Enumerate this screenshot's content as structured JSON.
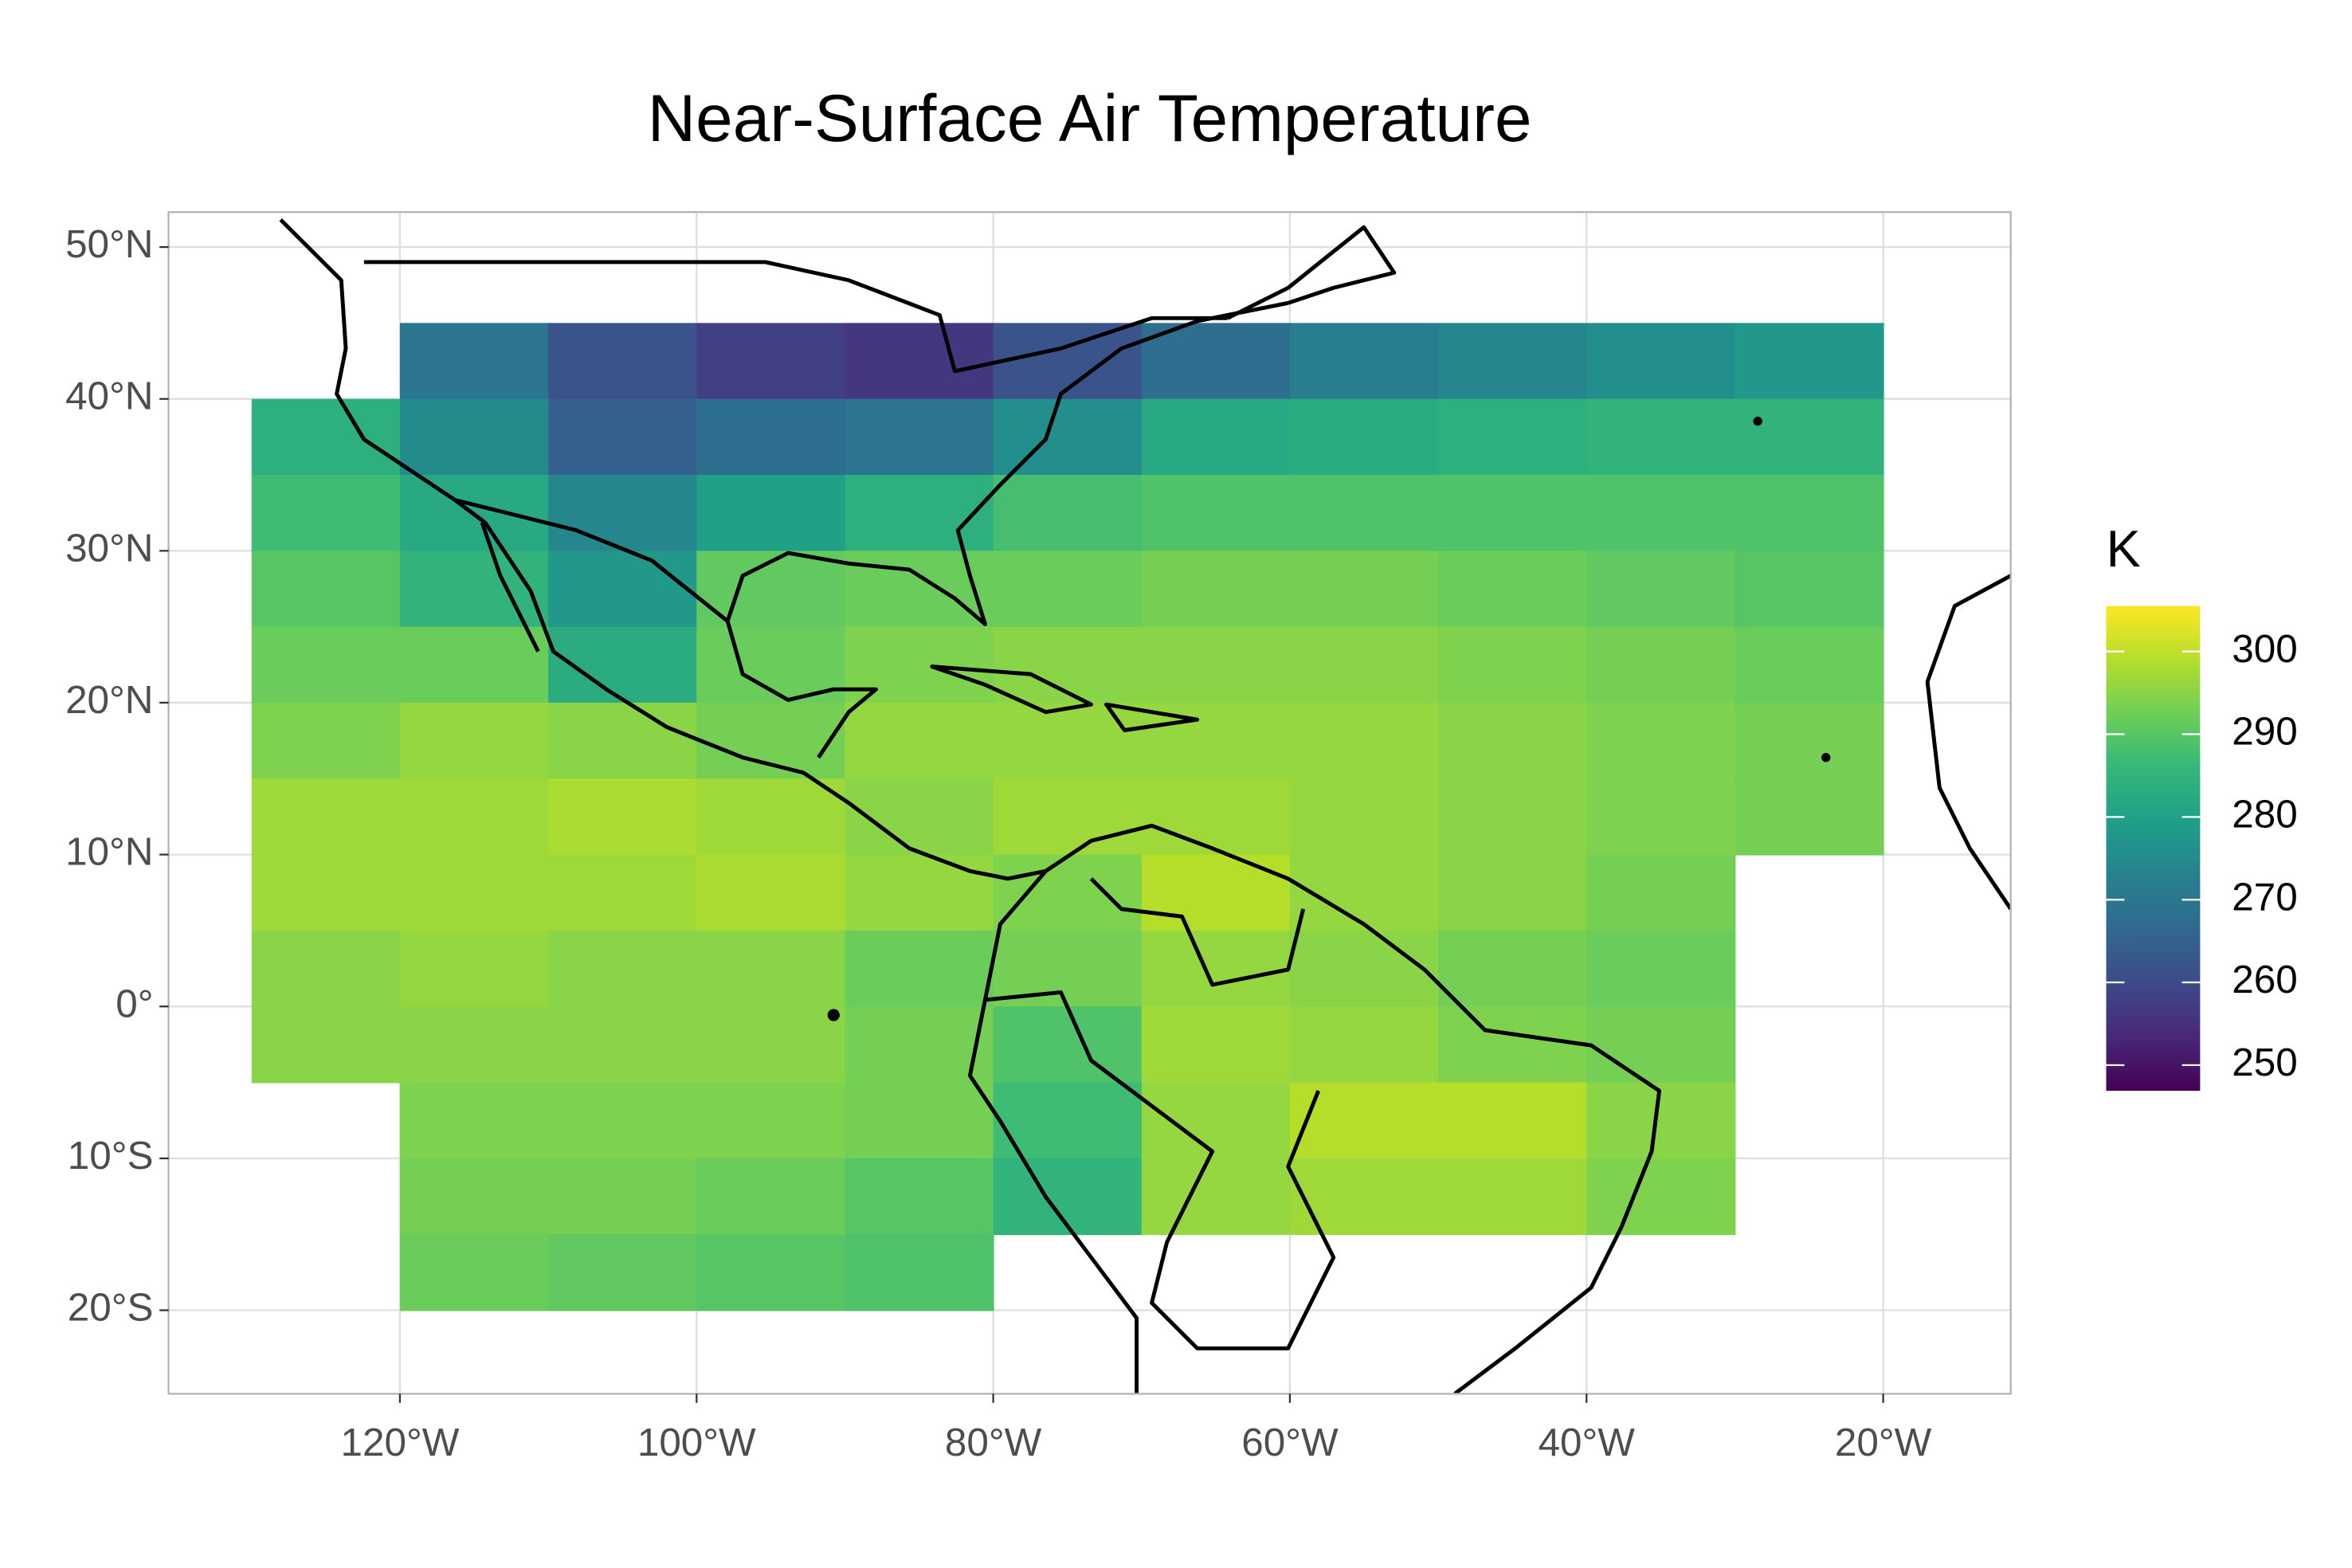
{
  "chart_data": {
    "type": "raster",
    "title": "Near-Surface Air Temperature",
    "colormap": "viridis",
    "legend_title": "K",
    "xlim": [
      -135.6,
      -11.4
    ],
    "ylim": [
      -25.5,
      52.3
    ],
    "xticks": [
      {
        "value": -120,
        "label": "120°W"
      },
      {
        "value": -100,
        "label": "100°W"
      },
      {
        "value": -80,
        "label": "80°W"
      },
      {
        "value": -60,
        "label": "60°W"
      },
      {
        "value": -40,
        "label": "40°W"
      },
      {
        "value": -20,
        "label": "20°W"
      }
    ],
    "yticks": [
      {
        "value": 50,
        "label": "50°N"
      },
      {
        "value": 40,
        "label": "40°N"
      },
      {
        "value": 30,
        "label": "30°N"
      },
      {
        "value": 20,
        "label": "20°N"
      },
      {
        "value": 10,
        "label": "10°N"
      },
      {
        "value": 0,
        "label": "0°"
      },
      {
        "value": -10,
        "label": "10°S"
      },
      {
        "value": -20,
        "label": "20°S"
      }
    ],
    "grid": true,
    "clim": [
      246.9,
      305.5
    ],
    "cticks": [
      250,
      260,
      270,
      280,
      290,
      300
    ],
    "lon": [
      -125,
      -115,
      -105,
      -95,
      -85,
      -75,
      -65,
      -55,
      -45,
      -35,
      -25
    ],
    "lat": [
      42.5,
      37.5,
      32.5,
      27.5,
      22.5,
      17.5,
      12.5,
      7.5,
      2.5,
      -2.5,
      -7.5,
      -12.5,
      -17.5
    ],
    "values": [
      [
        null,
        270,
        262,
        258,
        256,
        262,
        268,
        272,
        274,
        276,
        278
      ],
      [
        284,
        275,
        265,
        268,
        270,
        276,
        282,
        283,
        284,
        285,
        285
      ],
      [
        287,
        282,
        274,
        280,
        284,
        288,
        289,
        289,
        289,
        289,
        289
      ],
      [
        290,
        285,
        278,
        291,
        292,
        292,
        293,
        293,
        292,
        291,
        290
      ],
      [
        292,
        292,
        283,
        292,
        294,
        295,
        295,
        295,
        294,
        293,
        292
      ],
      [
        294,
        296,
        295,
        293,
        296,
        296,
        296,
        296,
        295,
        294,
        293
      ],
      [
        297,
        297,
        298,
        297,
        295,
        297,
        297,
        296,
        295,
        294,
        293
      ],
      [
        297,
        297,
        297,
        298,
        296,
        294,
        299,
        296,
        295,
        293,
        null
      ],
      [
        295,
        296,
        295,
        295,
        292,
        293,
        296,
        295,
        293,
        292,
        null
      ],
      [
        295,
        295,
        295,
        295,
        293,
        289,
        297,
        296,
        294,
        293,
        null
      ],
      [
        null,
        294,
        294,
        294,
        293,
        287,
        296,
        299,
        299,
        295,
        null
      ],
      [
        null,
        293,
        293,
        292,
        290,
        285,
        296,
        297,
        297,
        294,
        null
      ],
      [
        null,
        292,
        291,
        290,
        289,
        null,
        null,
        null,
        null,
        null,
        null
      ]
    ]
  }
}
